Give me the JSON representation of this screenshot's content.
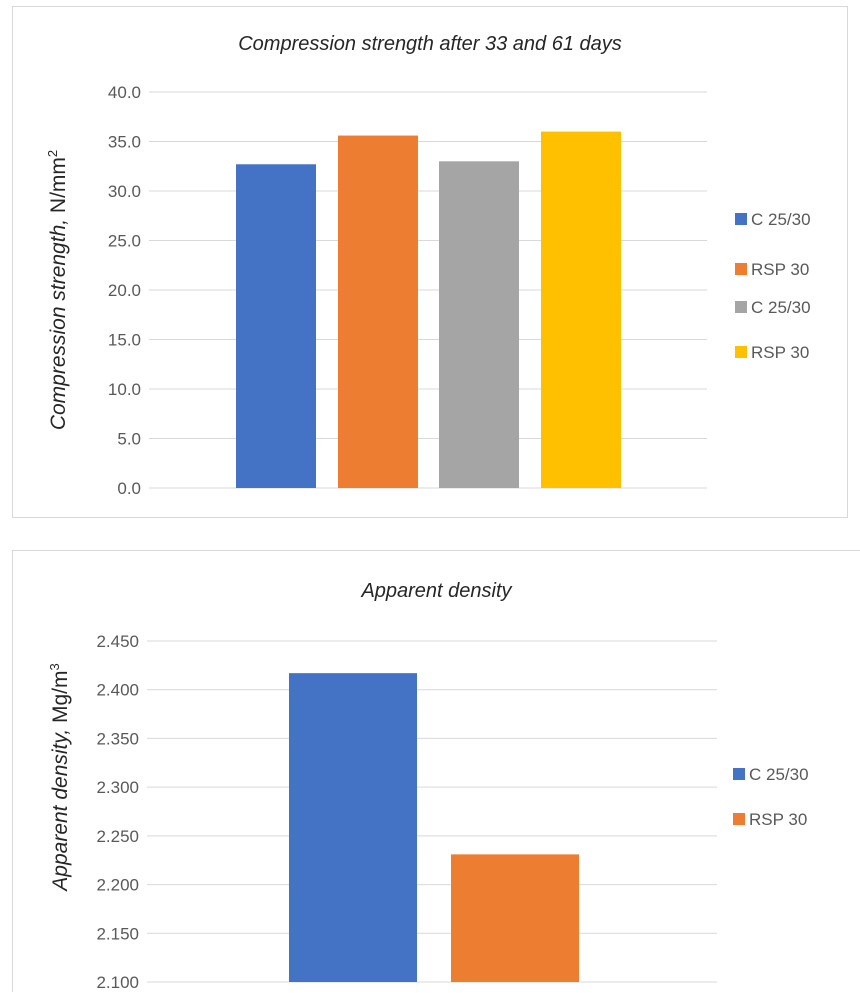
{
  "charts": [
    {
      "title": "Compression strength after 33 and 61 days",
      "ylabel_italic": "Compression strength,",
      "ylabel_unit": "N/mm",
      "ylabel_sup": "2",
      "chart_data": {
        "type": "bar",
        "ylim": [
          0,
          40
        ],
        "ticks": [
          "0.0",
          "5.0",
          "10.0",
          "15.0",
          "20.0",
          "25.0",
          "30.0",
          "35.0",
          "40.0"
        ],
        "grid": true,
        "legend": "right",
        "series": [
          {
            "name": "C 25/30",
            "value": 32.7,
            "color": "#4472c4"
          },
          {
            "name": "RSP 30",
            "value": 35.6,
            "color": "#ed7d31"
          },
          {
            "name": "C 25/30",
            "value": 33.0,
            "color": "#a5a5a5"
          },
          {
            "name": "RSP 30",
            "value": 36.0,
            "color": "#ffc000"
          }
        ]
      }
    },
    {
      "title": "Apparent density",
      "ylabel_italic": "Apparent density,",
      "ylabel_unit": "Mg/m",
      "ylabel_sup": "3",
      "chart_data": {
        "type": "bar",
        "ylim": [
          2.1,
          2.45
        ],
        "ticks": [
          "2.100",
          "2.150",
          "2.200",
          "2.250",
          "2.300",
          "2.350",
          "2.400",
          "2.450"
        ],
        "grid": true,
        "legend": "right",
        "series": [
          {
            "name": "C 25/30",
            "value": 2.417,
            "color": "#4472c4"
          },
          {
            "name": "RSP 30",
            "value": 2.231,
            "color": "#ed7d31"
          }
        ]
      }
    }
  ]
}
